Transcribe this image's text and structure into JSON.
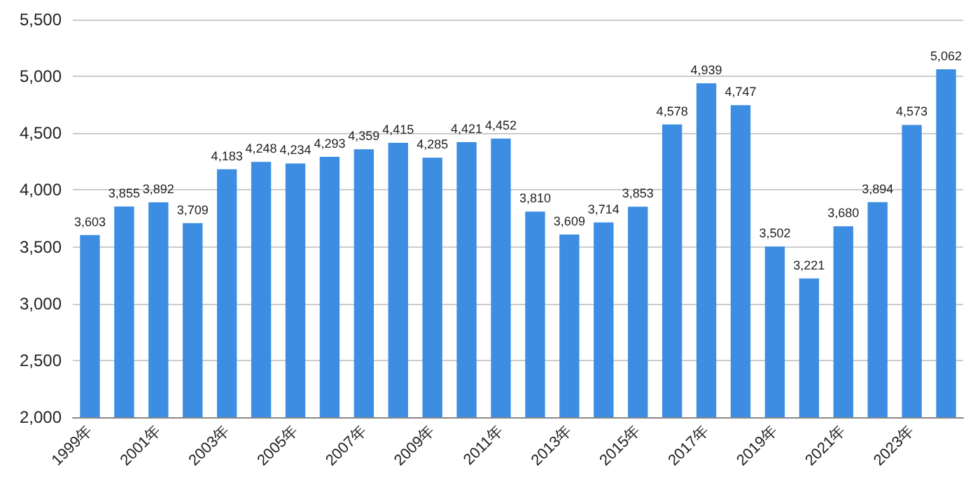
{
  "chart_data": {
    "type": "bar",
    "categories": [
      "1999年",
      null,
      "2001年",
      null,
      "2003年",
      null,
      "2005年",
      null,
      "2007年",
      null,
      "2009年",
      null,
      "2011年",
      null,
      "2013年",
      null,
      "2015年",
      null,
      "2017年",
      null,
      "2019年",
      null,
      "2021年",
      null,
      "2023年",
      null
    ],
    "values": [
      3603,
      3855,
      3892,
      3709,
      4183,
      4248,
      4234,
      4293,
      4359,
      4415,
      4285,
      4421,
      4452,
      3810,
      3609,
      3714,
      3853,
      4578,
      4939,
      4747,
      3502,
      3221,
      3680,
      3894,
      4573,
      5062
    ],
    "value_labels": [
      "3,603",
      "3,855",
      "3,892",
      "3,709",
      "4,183",
      "4,248",
      "4,234",
      "4,293",
      "4,359",
      "4,415",
      "4,285",
      "4,421",
      "4,452",
      "3,810",
      "3,609",
      "3,714",
      "3,853",
      "4,578",
      "4,939",
      "4,747",
      "3,502",
      "3,221",
      "3,680",
      "3,894",
      "4,573",
      "5,062"
    ],
    "color": "#3d8ee3",
    "ylim": [
      2000,
      5500
    ],
    "yticks": [
      {
        "value": 2000,
        "label": "2,000"
      },
      {
        "value": 2500,
        "label": "2,500"
      },
      {
        "value": 3000,
        "label": "3,000"
      },
      {
        "value": 3500,
        "label": "3,500"
      },
      {
        "value": 4000,
        "label": "4,000"
      },
      {
        "value": 4500,
        "label": "4,500"
      },
      {
        "value": 5000,
        "label": "5,000"
      },
      {
        "value": 5500,
        "label": "5,500"
      }
    ],
    "grid": "y"
  }
}
